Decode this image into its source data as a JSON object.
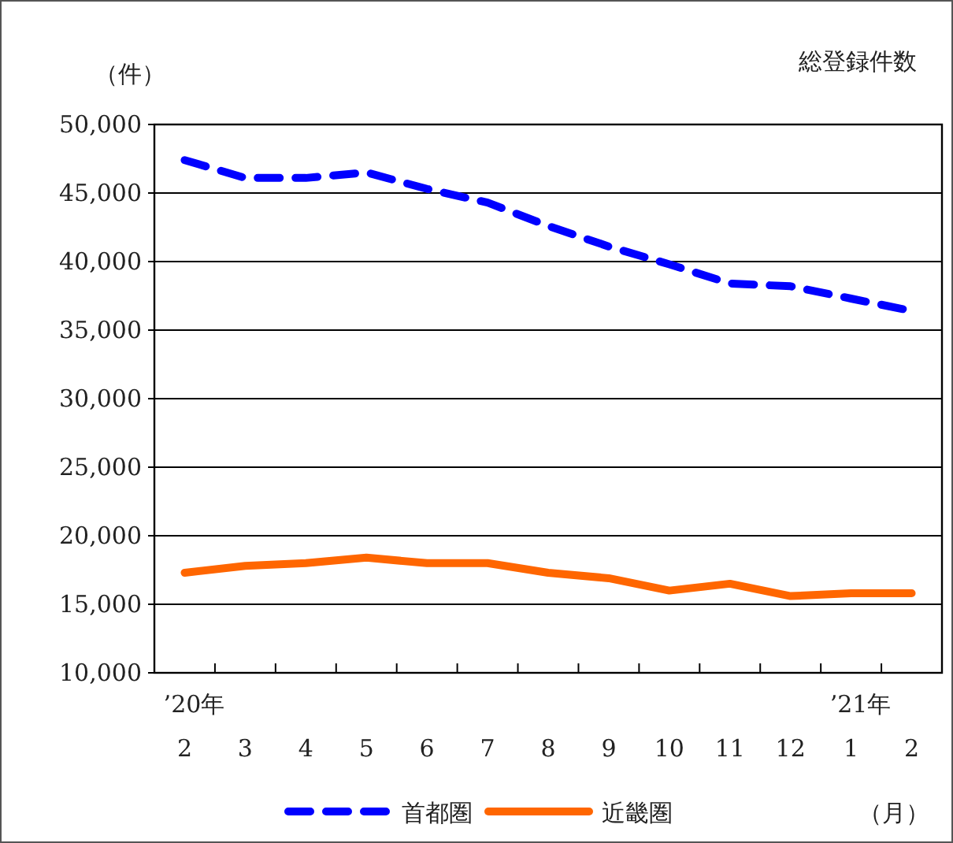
{
  "chart_data": {
    "type": "line",
    "title": "総登録件数",
    "ylabel": "（件）",
    "xlabel": "（月）",
    "categories": [
      "’20年\n2",
      "3",
      "4",
      "5",
      "6",
      "7",
      "8",
      "9",
      "10",
      "11",
      "12",
      "’21年\n1",
      "2"
    ],
    "series": [
      {
        "name": "首都圏",
        "color": "#0000ff",
        "line_style": "dashed",
        "values": [
          47400,
          46100,
          46100,
          46500,
          45300,
          44300,
          42600,
          41100,
          39800,
          38400,
          38200,
          37300,
          36400
        ]
      },
      {
        "name": "近畿圏",
        "color": "#ff6600",
        "line_style": "solid",
        "values": [
          17300,
          17800,
          18000,
          18400,
          18000,
          18000,
          17300,
          16900,
          16000,
          16500,
          15600,
          15800,
          15800
        ]
      }
    ],
    "ylim": [
      10000,
      50000
    ],
    "yticks": [
      {
        "value": 10000,
        "label": "10,000"
      },
      {
        "value": 15000,
        "label": "15,000"
      },
      {
        "value": 20000,
        "label": "20,000"
      },
      {
        "value": 25000,
        "label": "25,000"
      },
      {
        "value": 30000,
        "label": "30,000"
      },
      {
        "value": 35000,
        "label": "35,000"
      },
      {
        "value": 40000,
        "label": "40,000"
      },
      {
        "value": 45000,
        "label": "45,000"
      },
      {
        "value": 50000,
        "label": "50,000"
      }
    ],
    "grid": "y",
    "legend": "bottom"
  }
}
